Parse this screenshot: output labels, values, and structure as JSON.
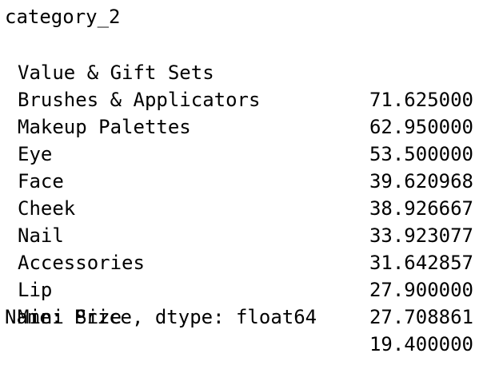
{
  "series": {
    "index_name": "category_2",
    "rows": [
      {
        "label": "Value & Gift Sets",
        "value": "71.625000"
      },
      {
        "label": "Brushes & Applicators",
        "value": "62.950000"
      },
      {
        "label": "Makeup Palettes",
        "value": "53.500000"
      },
      {
        "label": "Eye",
        "value": "39.620968"
      },
      {
        "label": "Face",
        "value": "38.926667"
      },
      {
        "label": "Cheek",
        "value": "33.923077"
      },
      {
        "label": "Nail",
        "value": "31.642857"
      },
      {
        "label": "Accessories",
        "value": "27.900000"
      },
      {
        "label": "Lip",
        "value": "27.708861"
      },
      {
        "label": "Mini Size",
        "value": "19.400000"
      }
    ],
    "footer": "Name: Price, dtype: float64"
  }
}
